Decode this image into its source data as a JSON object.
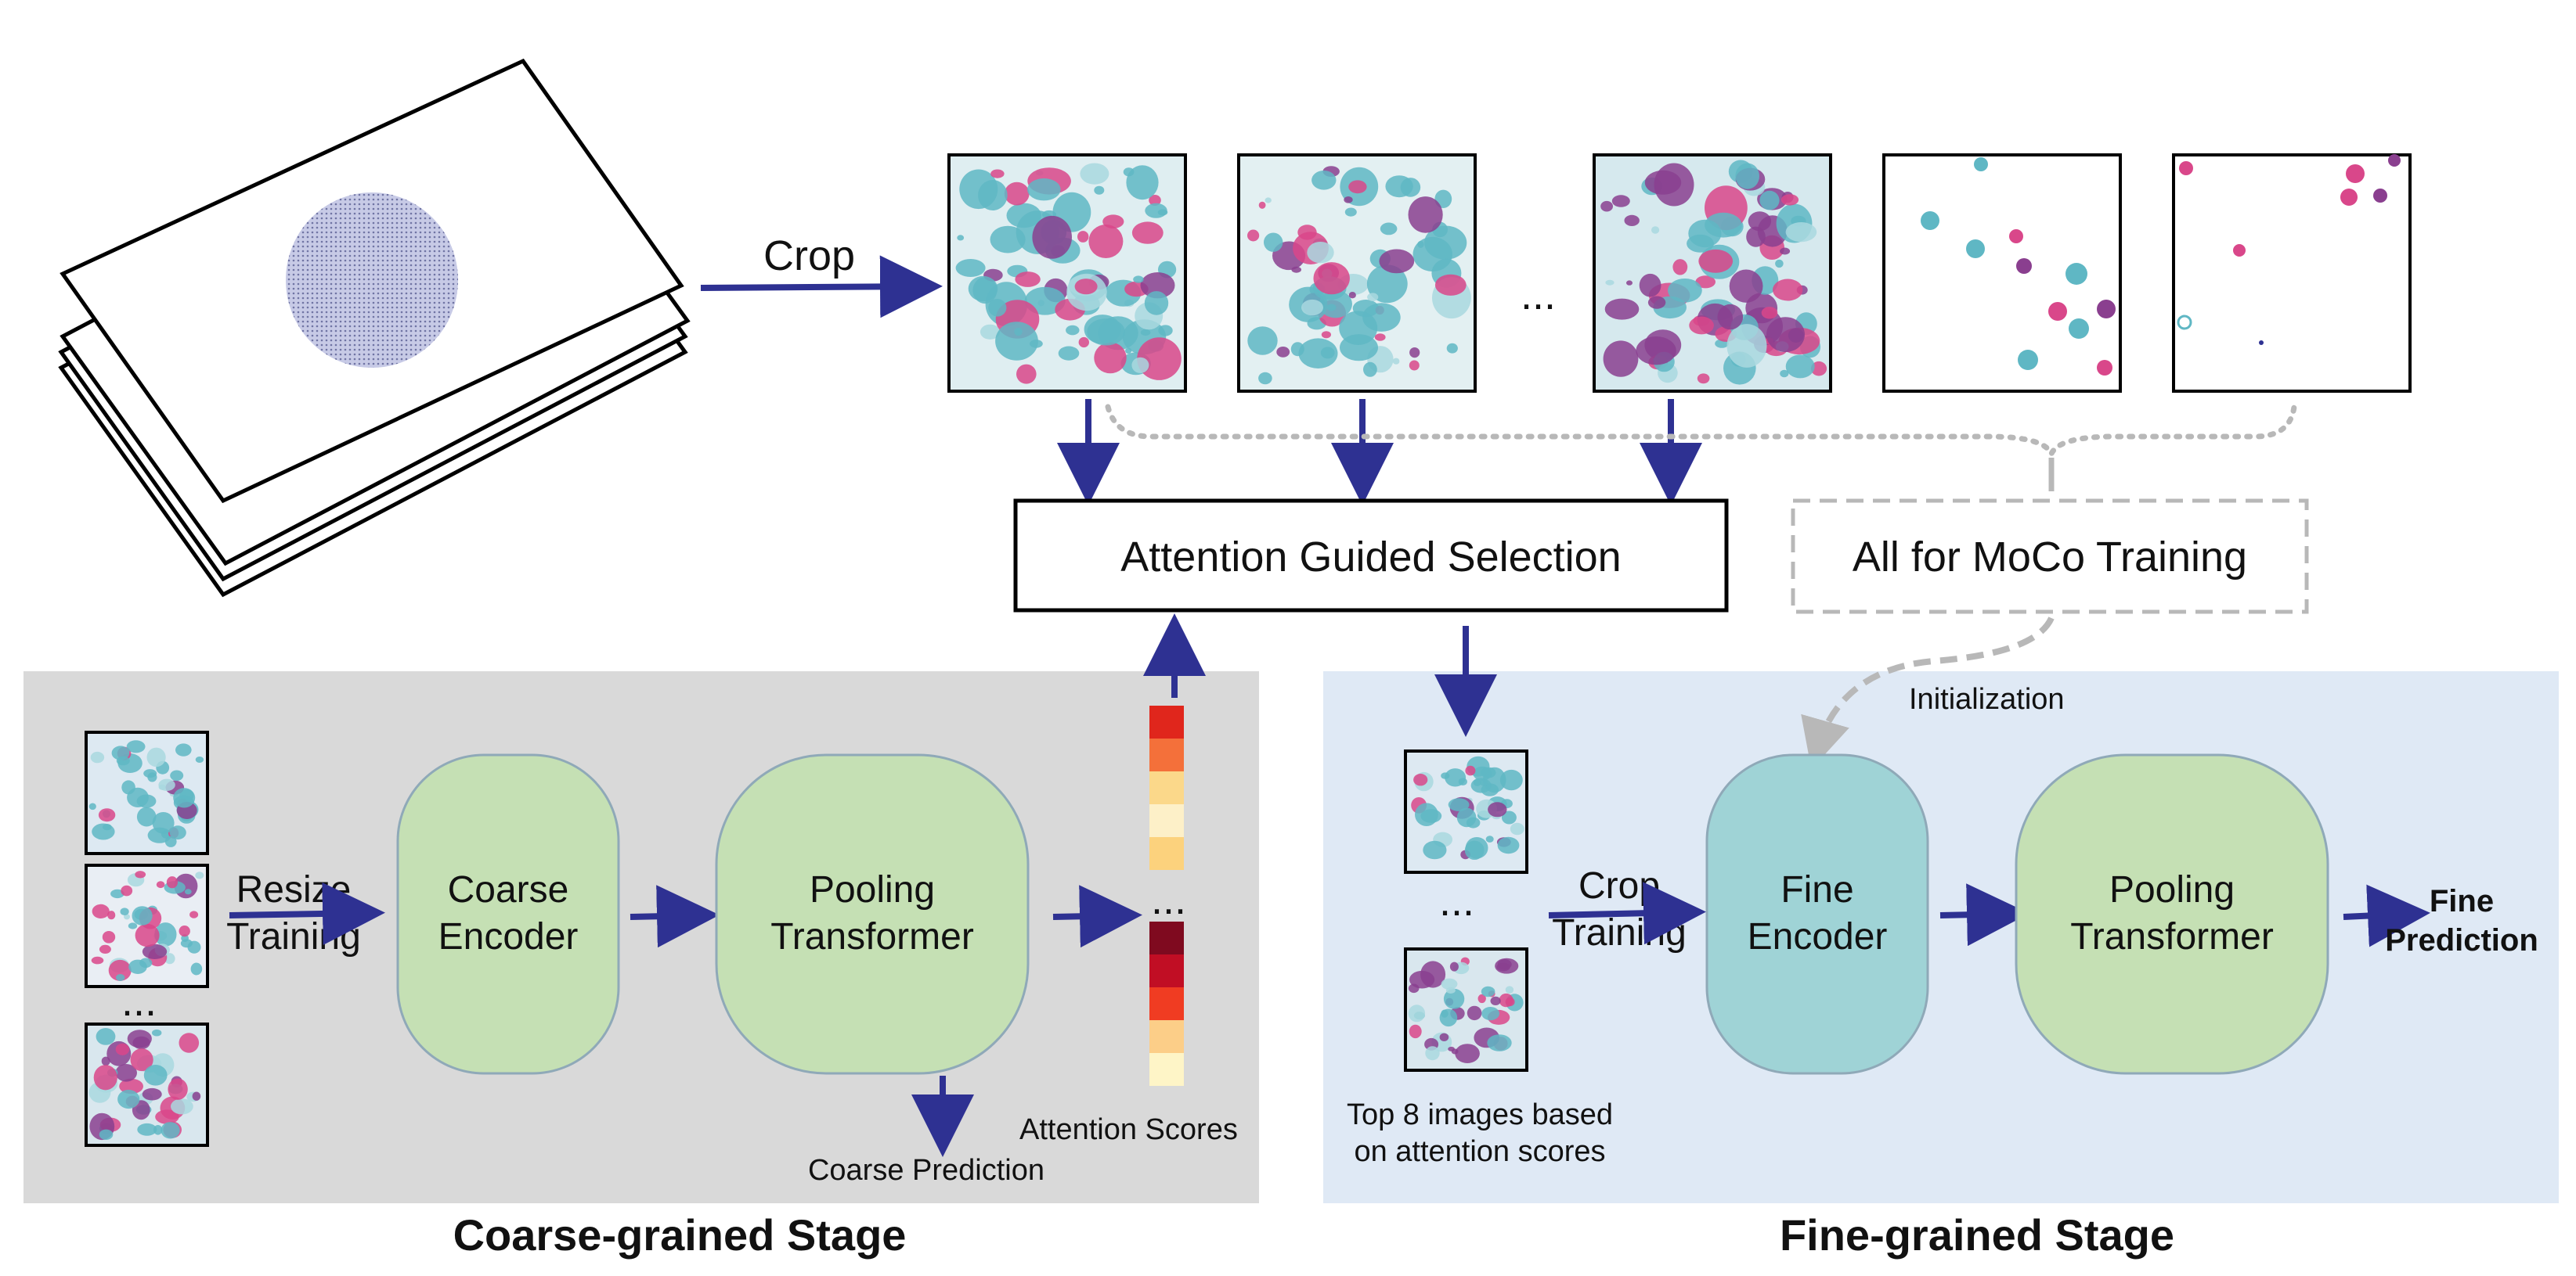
{
  "labels": {
    "crop": "Crop",
    "ellipsis": "...",
    "attention_selection": "Attention Guided Selection",
    "moco_training": "All for MoCo Training",
    "initialization": "Initialization",
    "resize": "Resize",
    "training": "Training",
    "coarse_encoder_1": "Coarse",
    "coarse_encoder_2": "Encoder",
    "pooling_1": "Pooling",
    "pooling_2": "Transformer",
    "coarse_prediction": "Coarse Prediction",
    "attention_scores": "Attention Scores",
    "top8_1": "Top 8 images based",
    "top8_2": "on attention scores",
    "fine_encoder_1": "Fine",
    "fine_encoder_2": "Encoder",
    "fine_prediction_1": "Fine",
    "fine_prediction_2": "Prediction",
    "coarse_stage": "Coarse-grained Stage",
    "fine_stage": "Fine-grained Stage"
  },
  "colors": {
    "arrow": "#2e3192",
    "dotted": "#b8b8b8",
    "coarse_panel": "#d9d9d9",
    "fine_panel": "#dfe9f5",
    "encoder_green": "#c5e0b4",
    "encoder_teal": "#9fd3d6",
    "cell_pink": "#d9478a",
    "cell_teal": "#5fb7c4",
    "cell_purple": "#8a3f8f"
  },
  "attention_colors_top": [
    "#e0261c",
    "#f4703a",
    "#fbd88a",
    "#fdf0c8",
    "#fcd27d"
  ],
  "attention_colors_bottom": [
    "#7f0a1f",
    "#c10e24",
    "#f03c22",
    "#fcce88",
    "#fef5c7"
  ]
}
